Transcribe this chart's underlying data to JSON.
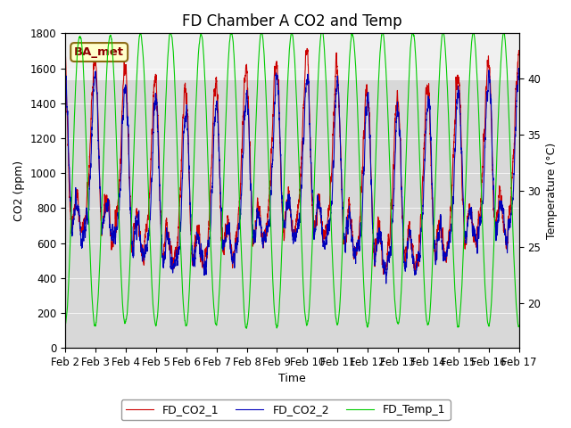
{
  "title": "FD Chamber A CO2 and Temp",
  "xlabel": "Time",
  "ylabel_left": "CO2 (ppm)",
  "ylabel_right": "Temperature (°C)",
  "ylim_left": [
    0,
    1800
  ],
  "ylim_right": [
    16,
    44
  ],
  "xlim": [
    0,
    15
  ],
  "xtick_labels": [
    "Feb 2",
    "Feb 3",
    "Feb 4",
    "Feb 5",
    "Feb 6",
    "Feb 7",
    "Feb 8",
    "Feb 9",
    "Feb 10",
    "Feb 11",
    "Feb 12",
    "Feb 13",
    "Feb 14",
    "Feb 15",
    "Feb 16",
    "Feb 17"
  ],
  "xtick_positions": [
    0,
    1,
    2,
    3,
    4,
    5,
    6,
    7,
    8,
    9,
    10,
    11,
    12,
    13,
    14,
    15
  ],
  "color_co2_1": "#cc0000",
  "color_co2_2": "#0000bb",
  "color_temp": "#00cc00",
  "legend_labels": [
    "FD_CO2_1",
    "FD_CO2_2",
    "FD_Temp_1"
  ],
  "ba_met_label": "BA_met",
  "shaded_ymin": 1530,
  "shaded_ymax": 1800,
  "background_color": "#ffffff",
  "plot_bg_color": "#d8d8d8",
  "shaded_color": "#f0f0f0",
  "title_fontsize": 12,
  "axis_label_fontsize": 9,
  "tick_fontsize": 8.5
}
